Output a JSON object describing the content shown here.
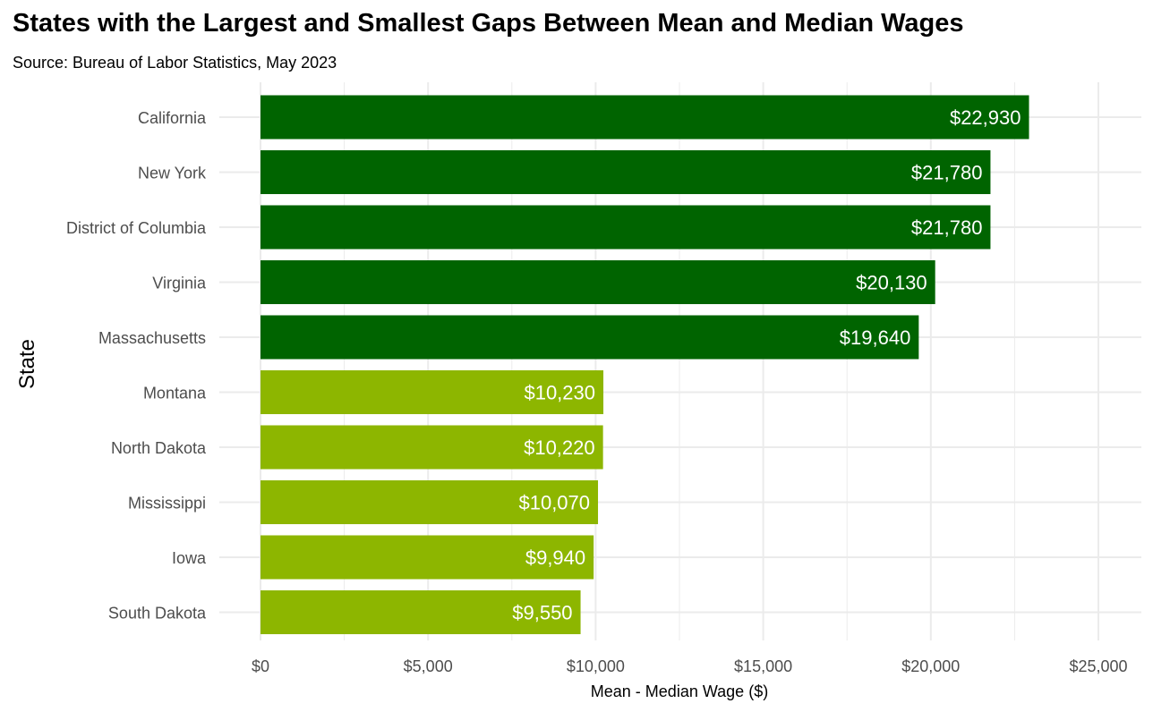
{
  "chart_data": {
    "type": "bar",
    "orientation": "horizontal",
    "title": "States with the Largest and Smallest Gaps Between Mean and Median Wages",
    "subtitle": "Source: Bureau of Labor Statistics, May 2023",
    "xlabel": "Mean - Median Wage ($)",
    "ylabel": "State",
    "xlim": [
      0,
      25000
    ],
    "x_ticks": [
      0,
      5000,
      10000,
      15000,
      20000,
      25000
    ],
    "x_tick_labels": [
      "$0",
      "$5,000",
      "$10,000",
      "$15,000",
      "$20,000",
      "$25,000"
    ],
    "grid": true,
    "categories": [
      "California",
      "New York",
      "District of Columbia",
      "Virginia",
      "Massachusetts",
      "Montana",
      "North Dakota",
      "Mississippi",
      "Iowa",
      "South Dakota"
    ],
    "values": [
      22930,
      21780,
      21780,
      20130,
      19640,
      10230,
      10220,
      10070,
      9940,
      9550
    ],
    "value_labels": [
      "$22,930",
      "$21,780",
      "$21,780",
      "$20,130",
      "$19,640",
      "$10,230",
      "$10,220",
      "$10,070",
      "$9,940",
      "$9,550"
    ],
    "groups": [
      "largest",
      "largest",
      "largest",
      "largest",
      "largest",
      "smallest",
      "smallest",
      "smallest",
      "smallest",
      "smallest"
    ],
    "colors": {
      "largest": "#006400",
      "smallest": "#8db600",
      "grid": "#ebebeb",
      "label": "#ffffff",
      "axis_text": "#4d4d4d"
    }
  }
}
